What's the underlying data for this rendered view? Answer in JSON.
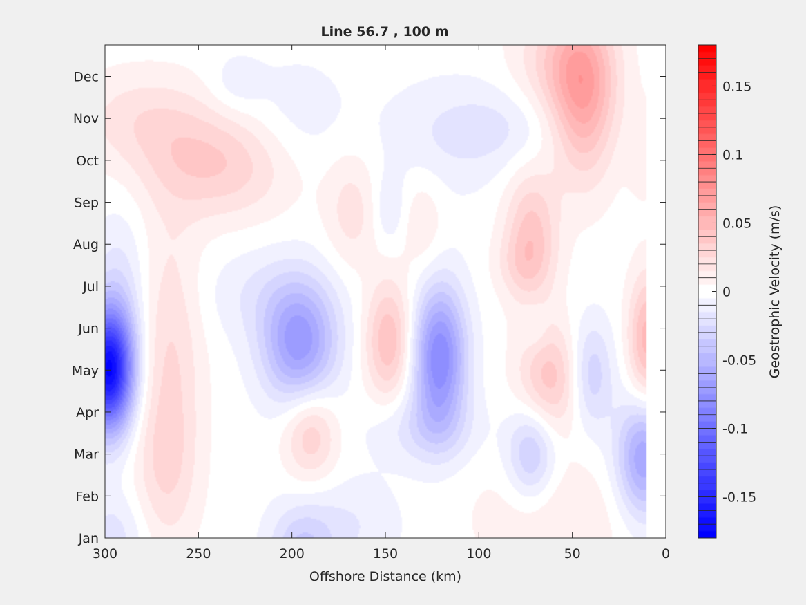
{
  "chart_data": {
    "type": "heatmap",
    "title": "Line 56.7 , 100 m",
    "xlabel": "Offshore Distance (km)",
    "ylabel": "",
    "xlim": [
      300,
      0
    ],
    "x_direction": "reversed",
    "x_ticks": [
      300,
      250,
      200,
      150,
      100,
      50,
      0
    ],
    "y_ticks": [
      "Jan",
      "Feb",
      "Mar",
      "Apr",
      "May",
      "Jun",
      "Jul",
      "Aug",
      "Sep",
      "Oct",
      "Nov",
      "Dec"
    ],
    "data_x_extent": [
      300,
      10
    ],
    "colorbar": {
      "label": "Geostrophic Velocity (m/s)",
      "range": [
        -0.18,
        0.18
      ],
      "step": 0.01,
      "ticks": [
        -0.15,
        -0.1,
        -0.05,
        0,
        0.05,
        0.1,
        0.15
      ],
      "tick_labels": [
        "-0.15",
        "-0.1",
        "-0.05",
        "0",
        "0.05",
        "0.1",
        "0.15"
      ],
      "neg_color": "#0000ff",
      "pos_color": "#ff0000",
      "mid_color": "#ffffff"
    },
    "features": [
      {
        "x": 298,
        "month": 5.0,
        "value": -0.17,
        "sx": 9,
        "sy": 1.0
      },
      {
        "x": 292,
        "month": 6.7,
        "value": -0.02,
        "sx": 10,
        "sy": 1.5
      },
      {
        "x": 295,
        "month": 1.0,
        "value": -0.02,
        "sx": 12,
        "sy": 0.8
      },
      {
        "x": 265,
        "month": 5.5,
        "value": 0.025,
        "sx": 12,
        "sy": 2.2
      },
      {
        "x": 268,
        "month": 2.6,
        "value": 0.02,
        "sx": 12,
        "sy": 1.3
      },
      {
        "x": 240,
        "month": 9.9,
        "value": 0.035,
        "sx": 28,
        "sy": 0.9
      },
      {
        "x": 280,
        "month": 11.0,
        "value": 0.02,
        "sx": 25,
        "sy": 0.8
      },
      {
        "x": 230,
        "month": 11.8,
        "value": -0.012,
        "sx": 10,
        "sy": 0.5
      },
      {
        "x": 196,
        "month": 5.6,
        "value": -0.07,
        "sx": 14,
        "sy": 1.0
      },
      {
        "x": 212,
        "month": 6.8,
        "value": -0.015,
        "sx": 25,
        "sy": 0.8
      },
      {
        "x": 190,
        "month": 3.5,
        "value": 0.035,
        "sx": 10,
        "sy": 0.8
      },
      {
        "x": 195,
        "month": 0.6,
        "value": -0.035,
        "sx": 12,
        "sy": 0.8
      },
      {
        "x": 170,
        "month": 1.3,
        "value": -0.015,
        "sx": 20,
        "sy": 0.8
      },
      {
        "x": 148,
        "month": 5.7,
        "value": 0.045,
        "sx": 9,
        "sy": 1.0
      },
      {
        "x": 121,
        "month": 5.3,
        "value": -0.085,
        "sx": 10,
        "sy": 1.2
      },
      {
        "x": 130,
        "month": 3.6,
        "value": -0.02,
        "sx": 20,
        "sy": 0.6
      },
      {
        "x": 168,
        "month": 8.8,
        "value": 0.02,
        "sx": 10,
        "sy": 1.0
      },
      {
        "x": 148,
        "month": 8.8,
        "value": -0.015,
        "sx": 6,
        "sy": 0.6
      },
      {
        "x": 130,
        "month": 8.5,
        "value": 0.015,
        "sx": 8,
        "sy": 0.9
      },
      {
        "x": 120,
        "month": 10.5,
        "value": -0.012,
        "sx": 25,
        "sy": 1.0
      },
      {
        "x": 198,
        "month": 11.0,
        "value": -0.012,
        "sx": 20,
        "sy": 1.0
      },
      {
        "x": 85,
        "month": 10.8,
        "value": -0.015,
        "sx": 25,
        "sy": 0.7
      },
      {
        "x": 72,
        "month": 8.2,
        "value": 0.04,
        "sx": 10,
        "sy": 1.1
      },
      {
        "x": 44,
        "month": 11.5,
        "value": 0.055,
        "sx": 12,
        "sy": 1.4
      },
      {
        "x": 55,
        "month": 12.3,
        "value": 0.03,
        "sx": 18,
        "sy": 1.0
      },
      {
        "x": 62,
        "month": 4.8,
        "value": 0.04,
        "sx": 12,
        "sy": 0.9
      },
      {
        "x": 72,
        "month": 3.0,
        "value": -0.04,
        "sx": 9,
        "sy": 0.8
      },
      {
        "x": 60,
        "month": 1.5,
        "value": 0.015,
        "sx": 30,
        "sy": 1.0
      },
      {
        "x": 40,
        "month": 4.9,
        "value": -0.035,
        "sx": 8,
        "sy": 0.9
      },
      {
        "x": 10,
        "month": 5.7,
        "value": 0.05,
        "sx": 7,
        "sy": 1.1
      },
      {
        "x": 12,
        "month": 2.9,
        "value": -0.065,
        "sx": 10,
        "sy": 1.0
      },
      {
        "x": 12,
        "month": 10.2,
        "value": 0.012,
        "sx": 6,
        "sy": 0.8
      },
      {
        "x": 78,
        "month": 7.5,
        "value": 0.012,
        "sx": 10,
        "sy": 0.5
      },
      {
        "x": 70,
        "month": 6.0,
        "value": -0.012,
        "sx": 5,
        "sy": 0.4
      }
    ]
  }
}
